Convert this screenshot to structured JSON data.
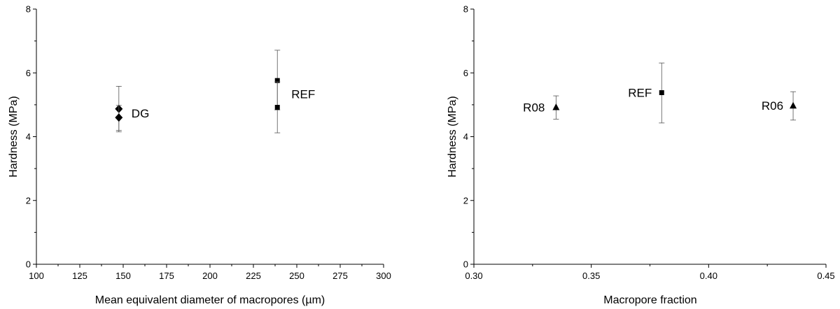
{
  "chart_data": [
    {
      "type": "scatter",
      "xlabel": "Mean equivalent diameter of macropores (µm)",
      "ylabel": "Hardness (MPa)",
      "xlim": [
        100,
        300
      ],
      "ylim": [
        0,
        8
      ],
      "xticks": [
        "100",
        "125",
        "150",
        "175",
        "200",
        "225",
        "250",
        "275",
        "300"
      ],
      "yticks": [
        "0",
        "2",
        "4",
        "6",
        "8"
      ],
      "grid": false,
      "series": [
        {
          "label": "DG",
          "marker": "diamond",
          "points": [
            {
              "x": 147.5,
              "y": 4.87,
              "err_low": 4.15,
              "err_high": 5.58
            },
            {
              "x": 147.5,
              "y": 4.6,
              "err_low": 4.2,
              "err_high": 4.98
            }
          ]
        },
        {
          "label": "REF",
          "marker": "square",
          "points": [
            {
              "x": 238.8,
              "y": 5.76,
              "err_low": 4.84,
              "err_high": 6.71
            },
            {
              "x": 238.8,
              "y": 4.92,
              "err_low": 4.12,
              "err_high": 5.72
            }
          ]
        }
      ]
    },
    {
      "type": "scatter",
      "xlabel": "Macropore fraction",
      "ylabel": "Hardness (MPa)",
      "xlim": [
        0.3,
        0.45
      ],
      "ylim": [
        0,
        8
      ],
      "xticks": [
        "0.30",
        "0.35",
        "0.40",
        "0.45"
      ],
      "yticks": [
        "0",
        "2",
        "4",
        "6",
        "8"
      ],
      "grid": false,
      "series": [
        {
          "label": "R08",
          "marker": "triangle",
          "points": [
            {
              "x": 0.335,
              "y": 4.92,
              "err_low": 4.55,
              "err_high": 5.28
            }
          ]
        },
        {
          "label": "REF",
          "marker": "square",
          "points": [
            {
              "x": 0.38,
              "y": 5.38,
              "err_low": 4.43,
              "err_high": 6.31
            }
          ]
        },
        {
          "label": "R06",
          "marker": "triangle",
          "points": [
            {
              "x": 0.436,
              "y": 4.97,
              "err_low": 4.52,
              "err_high": 5.41
            }
          ]
        }
      ]
    }
  ]
}
